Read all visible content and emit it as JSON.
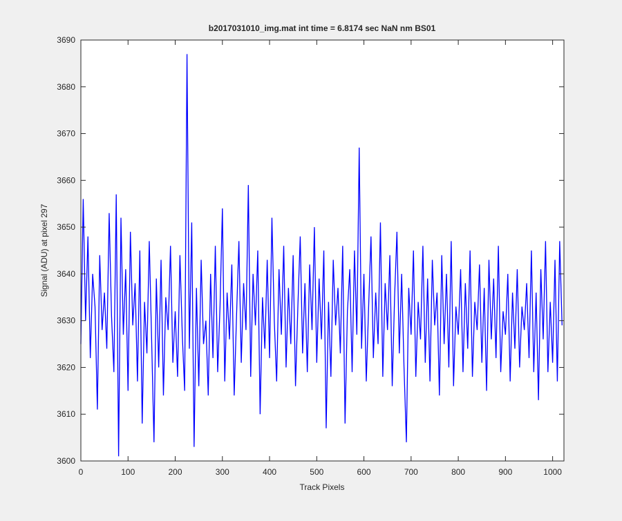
{
  "chart_data": {
    "type": "line",
    "title": "b2017031010_img.mat int time = 6.8174 sec  NaN nm BS01",
    "x_label": "Track Pixels",
    "y_label": "Signal (ADU) at pixel 297",
    "xlim": [
      0,
      1024
    ],
    "ylim": [
      3600,
      3690
    ],
    "xticks": [
      0,
      100,
      200,
      300,
      400,
      500,
      600,
      700,
      800,
      900,
      1000
    ],
    "yticks": [
      3600,
      3610,
      3620,
      3630,
      3640,
      3650,
      3660,
      3670,
      3680,
      3690
    ],
    "series": [
      {
        "color": "#0000ff",
        "x": [
          0,
          5,
          10,
          15,
          20,
          25,
          30,
          35,
          40,
          45,
          50,
          55,
          60,
          65,
          70,
          75,
          80,
          85,
          90,
          95,
          100,
          105,
          110,
          115,
          120,
          125,
          130,
          135,
          140,
          145,
          150,
          155,
          160,
          165,
          170,
          175,
          180,
          185,
          190,
          195,
          200,
          205,
          210,
          215,
          220,
          225,
          230,
          235,
          240,
          245,
          250,
          255,
          260,
          265,
          270,
          275,
          280,
          285,
          290,
          295,
          300,
          305,
          310,
          315,
          320,
          325,
          330,
          335,
          340,
          345,
          350,
          355,
          360,
          365,
          370,
          375,
          380,
          385,
          390,
          395,
          400,
          405,
          410,
          415,
          420,
          425,
          430,
          435,
          440,
          445,
          450,
          455,
          460,
          465,
          470,
          475,
          480,
          485,
          490,
          495,
          500,
          505,
          510,
          515,
          520,
          525,
          530,
          535,
          540,
          545,
          550,
          555,
          560,
          565,
          570,
          575,
          580,
          585,
          590,
          595,
          600,
          605,
          610,
          615,
          620,
          625,
          630,
          635,
          640,
          645,
          650,
          655,
          660,
          665,
          670,
          675,
          680,
          685,
          690,
          695,
          700,
          705,
          710,
          715,
          720,
          725,
          730,
          735,
          740,
          745,
          750,
          755,
          760,
          765,
          770,
          775,
          780,
          785,
          790,
          795,
          800,
          805,
          810,
          815,
          820,
          825,
          830,
          835,
          840,
          845,
          850,
          855,
          860,
          865,
          870,
          875,
          880,
          885,
          890,
          895,
          900,
          905,
          910,
          915,
          920,
          925,
          930,
          935,
          940,
          945,
          950,
          955,
          960,
          965,
          970,
          975,
          980,
          985,
          990,
          995,
          1000,
          1005,
          1010,
          1015,
          1020
        ],
        "values": [
          3625,
          3656,
          3630,
          3648,
          3622,
          3640,
          3633,
          3611,
          3644,
          3628,
          3636,
          3624,
          3653,
          3631,
          3619,
          3657,
          3601,
          3652,
          3627,
          3641,
          3615,
          3649,
          3629,
          3638,
          3617,
          3645,
          3608,
          3634,
          3623,
          3647,
          3626,
          3604,
          3639,
          3620,
          3643,
          3614,
          3635,
          3628,
          3646,
          3621,
          3632,
          3618,
          3644,
          3627,
          3615,
          3687,
          3624,
          3651,
          3603,
          3637,
          3616,
          3643,
          3625,
          3630,
          3614,
          3640,
          3622,
          3646,
          3619,
          3633,
          3654,
          3617,
          3636,
          3626,
          3642,
          3614,
          3631,
          3647,
          3621,
          3638,
          3628,
          3659,
          3618,
          3640,
          3629,
          3645,
          3610,
          3635,
          3624,
          3643,
          3622,
          3652,
          3630,
          3617,
          3641,
          3627,
          3646,
          3620,
          3637,
          3625,
          3644,
          3616,
          3633,
          3648,
          3623,
          3638,
          3619,
          3642,
          3628,
          3650,
          3621,
          3639,
          3626,
          3645,
          3607,
          3634,
          3618,
          3643,
          3629,
          3637,
          3623,
          3646,
          3608,
          3632,
          3641,
          3619,
          3645,
          3627,
          3667,
          3624,
          3640,
          3617,
          3633,
          3648,
          3622,
          3636,
          3625,
          3651,
          3618,
          3638,
          3628,
          3644,
          3616,
          3635,
          3649,
          3623,
          3640,
          3620,
          3604,
          3637,
          3627,
          3645,
          3618,
          3634,
          3626,
          3646,
          3621,
          3639,
          3617,
          3643,
          3629,
          3636,
          3614,
          3644,
          3625,
          3640,
          3620,
          3647,
          3616,
          3633,
          3627,
          3641,
          3619,
          3638,
          3624,
          3645,
          3618,
          3634,
          3628,
          3642,
          3621,
          3637,
          3615,
          3643,
          3626,
          3639,
          3622,
          3646,
          3619,
          3632,
          3627,
          3640,
          3617,
          3636,
          3624,
          3641,
          3620,
          3633,
          3628,
          3638,
          3622,
          3645,
          3619,
          3636,
          3613,
          3641,
          3626,
          3647,
          3619,
          3634,
          3621,
          3643,
          3617,
          3647,
          3629
        ]
      }
    ]
  }
}
